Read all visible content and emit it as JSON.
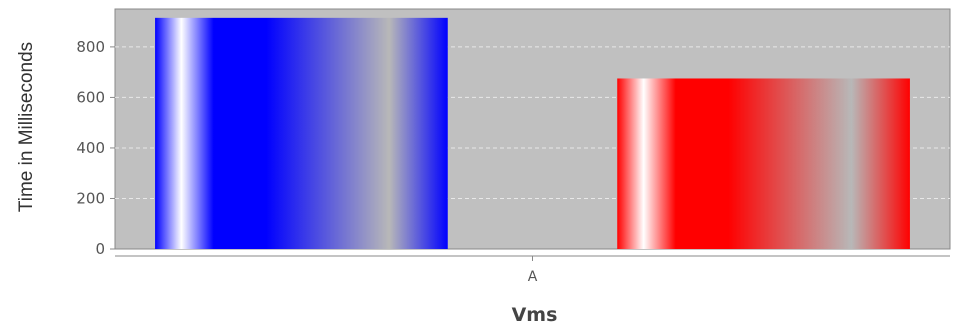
{
  "chart_data": {
    "type": "bar",
    "categories": [
      "A"
    ],
    "series": [
      {
        "values": [
          915
        ],
        "color": "#0000ff"
      },
      {
        "values": [
          675
        ],
        "color": "#ff0000"
      }
    ],
    "title": "",
    "xlabel": "Vms",
    "ylabel": "Time in Milliseconds",
    "ylim": [
      0,
      950
    ],
    "yticks": [
      0,
      200,
      400,
      600,
      800
    ],
    "grid": true,
    "plot_background": "#c0c0c0",
    "grid_color": "#e8e8e8"
  }
}
